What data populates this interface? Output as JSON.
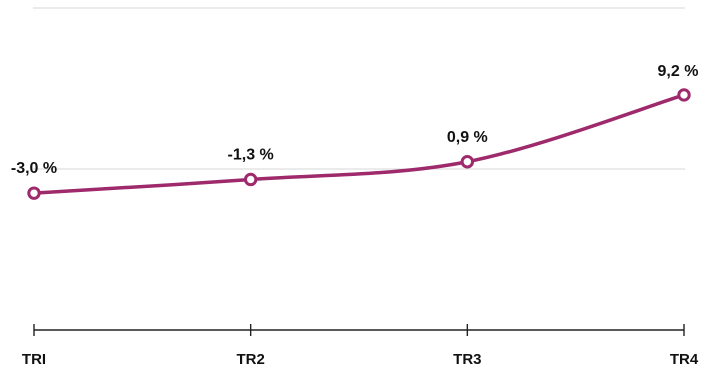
{
  "chart_data": {
    "type": "line",
    "title": "",
    "xlabel": "",
    "ylabel": "",
    "categories": [
      "TRI",
      "TR2",
      "TR3",
      "TR4"
    ],
    "series": [
      {
        "values": [
          -3.0,
          -1.3,
          0.9,
          9.2
        ],
        "data_labels": [
          "-3,0 %",
          "-1,3 %",
          "0,9 %",
          "9,2 %"
        ]
      }
    ],
    "ylim": [
      -20,
      20
    ],
    "grid": true,
    "legend": "none",
    "colors": {
      "series": "#9e2a6b"
    }
  }
}
